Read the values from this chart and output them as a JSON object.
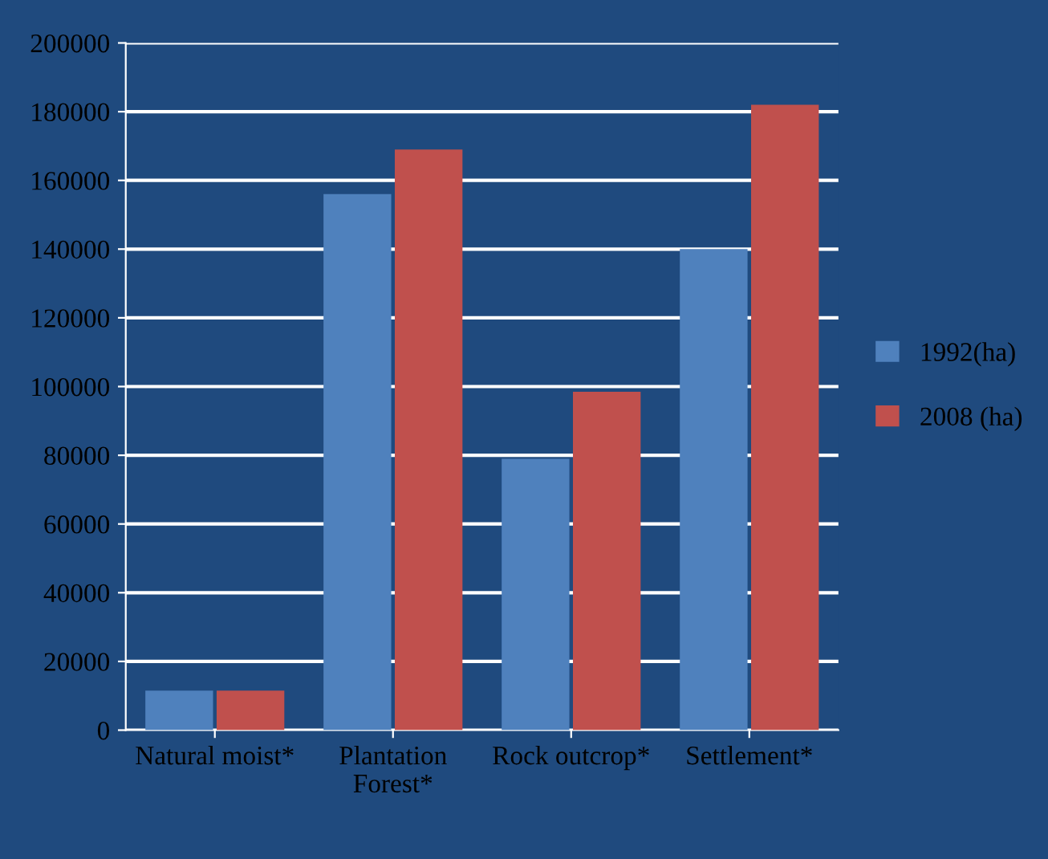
{
  "chart_data": {
    "type": "bar",
    "categories": [
      "Natural moist*",
      "Plantation Forest*",
      "Rock outcrop*",
      "Settlement*"
    ],
    "series": [
      {
        "name": "1992(ha)",
        "color": "#4f81bd",
        "values": [
          11500,
          156000,
          79000,
          140000
        ]
      },
      {
        "name": "2008 (ha)",
        "color": "#c0504d",
        "values": [
          11500,
          169000,
          98500,
          182000
        ]
      }
    ],
    "ylim": [
      0,
      200000
    ],
    "yticks": [
      0,
      20000,
      40000,
      60000,
      80000,
      100000,
      120000,
      140000,
      160000,
      180000,
      200000
    ],
    "grid": "y",
    "legend": "right"
  }
}
